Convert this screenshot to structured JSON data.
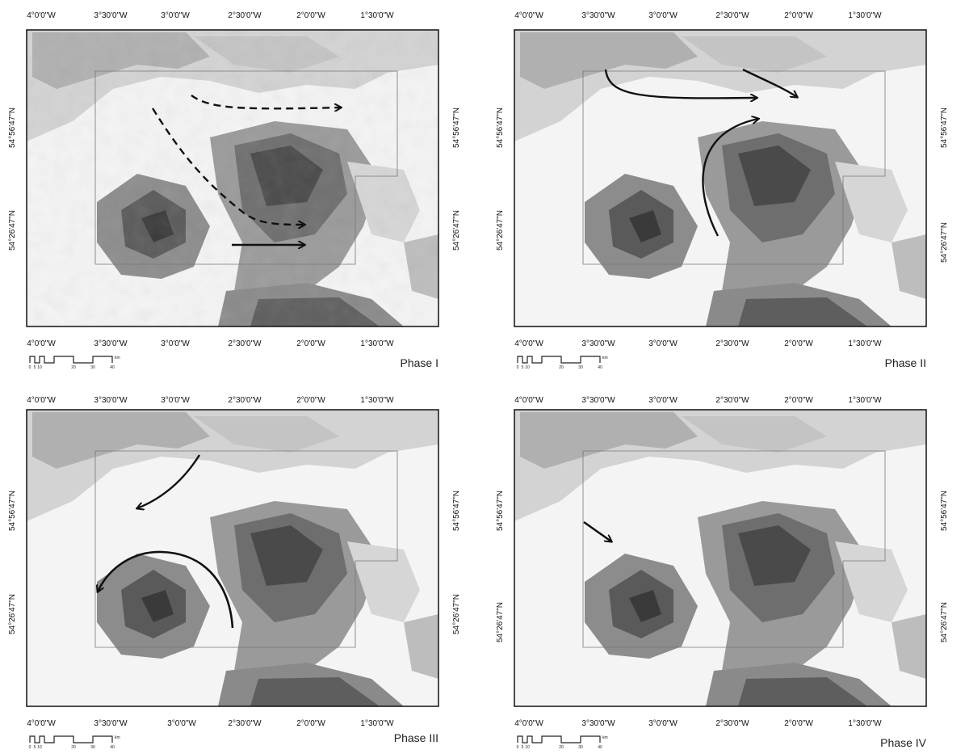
{
  "panels": [
    {
      "phase": "Phase I",
      "top_labels": [
        "4°0'0\"W",
        "3°30'0\"W",
        "3°0'0\"W",
        "2°30'0\"W",
        "2°0'0\"W",
        "1°30'0\"W"
      ],
      "bottom_labels": [
        "4°0'0\"W",
        "3°30'0\"W",
        "3°0'0\"W",
        "2°30'0\"W",
        "2°0'0\"W",
        "1°30'0\"W"
      ],
      "left_labels": [
        "54°56'47\"N",
        "54°26'47\"N"
      ],
      "right_labels": [
        "54°56'47\"N",
        "54°26'47\"N"
      ],
      "scale_ticks": [
        "0",
        "5",
        "10",
        "20",
        "30",
        "40"
      ],
      "scale_unit": "km",
      "arrows": [
        {
          "style": "dashed",
          "description": "northern eastward flow"
        },
        {
          "style": "dashed",
          "description": "southeastward flow"
        },
        {
          "style": "solid",
          "description": "eastward flow"
        }
      ]
    },
    {
      "phase": "Phase II",
      "top_labels": [
        "4°0'0\"W",
        "3°30'0\"W",
        "3°0'0\"W",
        "2°30'0\"W",
        "2°0'0\"W",
        "1°30'0\"W"
      ],
      "bottom_labels": [
        "4°0'0\"W",
        "3°30'0\"W",
        "3°0'0\"W",
        "2°30'0\"W",
        "2°0'0\"W",
        "1°30'0\"W"
      ],
      "left_labels": [
        "54°56'47\"N",
        "54°26'47\"N"
      ],
      "right_labels": [
        "54°56'47\"N",
        "54°26'47\"N"
      ],
      "scale_ticks": [
        "0",
        "5",
        "10",
        "20",
        "30",
        "40"
      ],
      "scale_unit": "km",
      "arrows": [
        {
          "style": "solid",
          "description": "northern eastward flow"
        },
        {
          "style": "solid",
          "description": "short southeast flow"
        },
        {
          "style": "solid",
          "description": "northward curving flow"
        }
      ]
    },
    {
      "phase": "Phase III",
      "top_labels": [
        "4°0'0\"W",
        "3°30'0\"W",
        "3°0'0\"W",
        "2°30'0\"W",
        "2°0'0\"W",
        "1°30'0\"W"
      ],
      "bottom_labels": [
        "4°0'0\"W",
        "3°30'0\"W",
        "3°0'0\"W",
        "2°30'0\"W",
        "2°0'0\"W",
        "1°30'0\"W"
      ],
      "left_labels": [
        "54°56'47\"N",
        "54°26'47\"N"
      ],
      "right_labels": [
        "54°56'47\"N",
        "54°26'47\"N"
      ],
      "scale_ticks": [
        "0",
        "5",
        "10",
        "20",
        "30",
        "40"
      ],
      "scale_unit": "km",
      "arrows": [
        {
          "style": "solid",
          "description": "southwestward flow"
        },
        {
          "style": "solid",
          "description": "westward arc around massif"
        }
      ]
    },
    {
      "phase": "Phase IV",
      "top_labels": [
        "4°0'0\"W",
        "3°30'0\"W",
        "3°0'0\"W",
        "2°30'0\"W",
        "2°0'0\"W",
        "1°30'0\"W"
      ],
      "bottom_labels": [
        "4°0'0\"W",
        "3°30'0\"W",
        "3°0'0\"W",
        "2°30'0\"W",
        "2°0'0\"W",
        "1°30'0\"W"
      ],
      "left_labels": [
        "54°56'47\"N",
        "54°26'47\"N"
      ],
      "right_labels": [
        "54°56'47\"N",
        "54°26'47\"N"
      ],
      "scale_ticks": [
        "0",
        "5",
        "10",
        "20",
        "30",
        "40"
      ],
      "scale_unit": "km",
      "arrows": [
        {
          "style": "solid",
          "description": "short southeastward flow"
        }
      ]
    }
  ],
  "colors": {
    "terrain_light": "#e2e2e2",
    "terrain_mid": "#a9a9a9",
    "terrain_dark": "#4a4a4a",
    "lowland": "#ffffff",
    "arrow": "#111111"
  }
}
